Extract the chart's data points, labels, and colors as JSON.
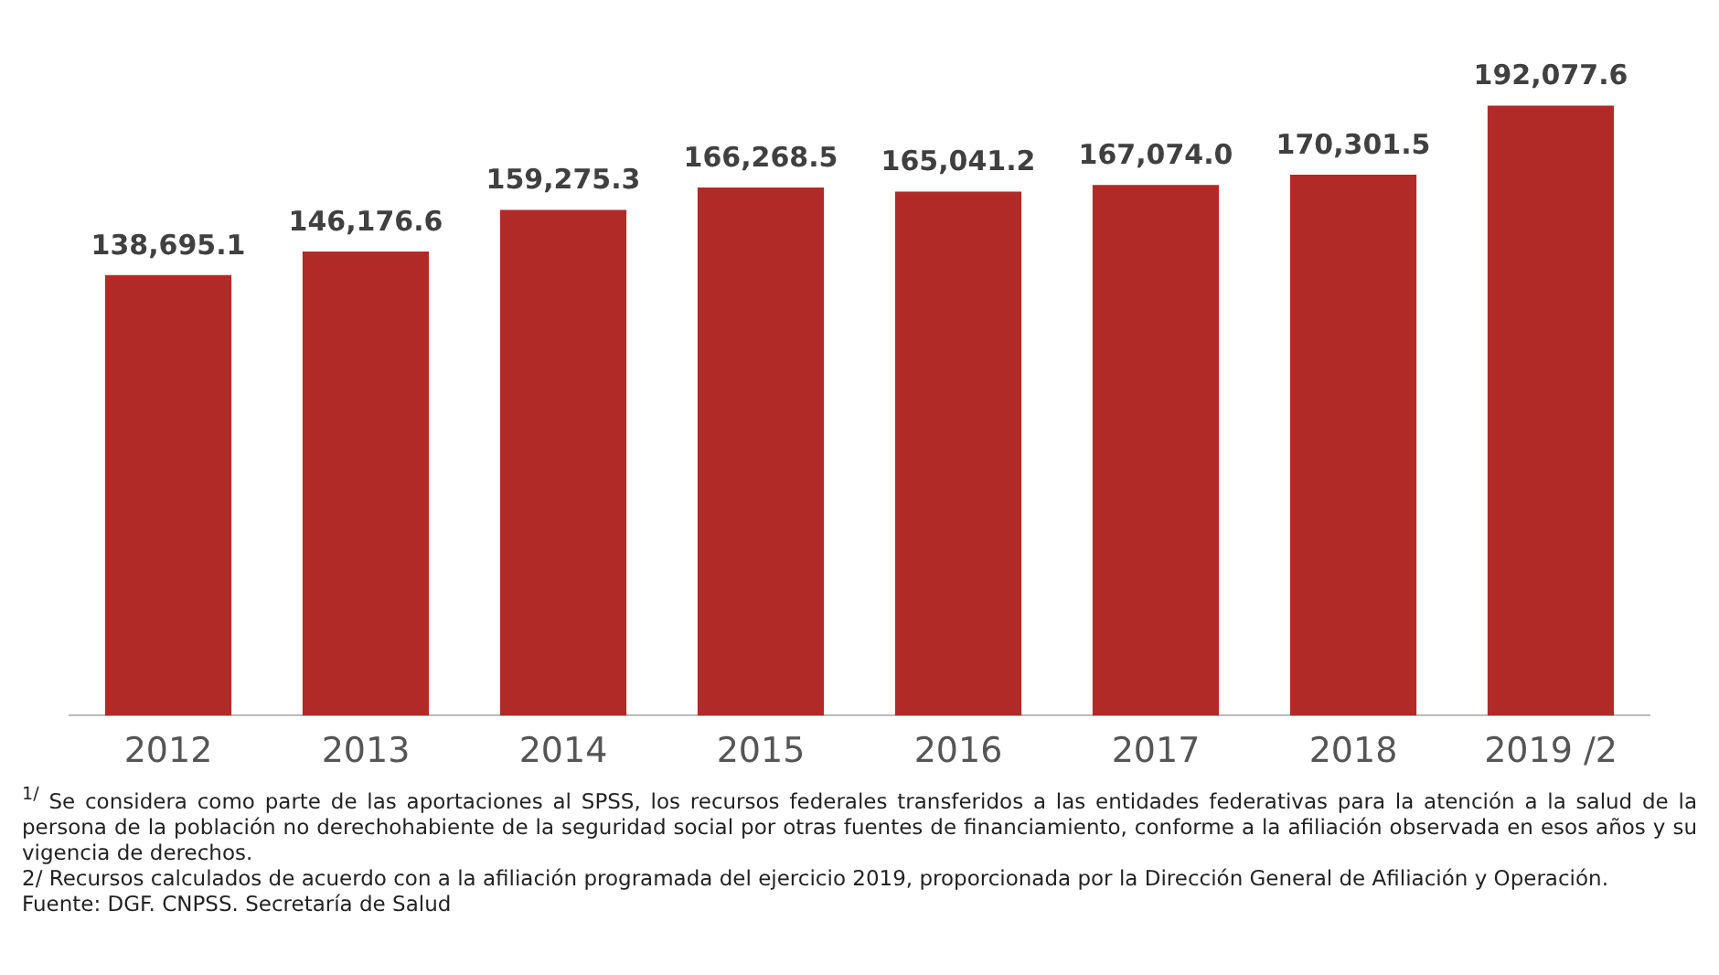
{
  "chart_data": {
    "type": "bar",
    "categories": [
      "2012",
      "2013",
      "2014",
      "2015",
      "2016",
      "2017",
      "2018",
      "2019 /2"
    ],
    "values": [
      138695.1,
      146176.6,
      159275.3,
      166268.5,
      165041.2,
      167074.0,
      170301.5,
      192077.6
    ],
    "value_labels": [
      "138,695.1",
      "146,176.6",
      "159,275.3",
      "166,268.5",
      "165,041.2",
      "167,074.0",
      "170,301.5",
      "192,077.6"
    ],
    "color": "#b22a27",
    "grid": false,
    "legend": false,
    "annotations": [
      "$^{1/}$ Se considera como parte de las aportaciones al SPSS, los recursos federales transferidos a las entidades federativas para la atención a la salud de la persona de la población no derechohabiente de la seguridad social por otras fuentes de financiamiento, conforme a la afiliación observada en esos años y su vigencia de derechos.",
      "2/ Recursos calculados de acuerdo con a la afiliación programada del ejercicio 2019, proporcionada por la Dirección General de Afiliación y Operación.",
      "Fuente: DGF. CNPSS. Secretaría de Salud"
    ]
  }
}
